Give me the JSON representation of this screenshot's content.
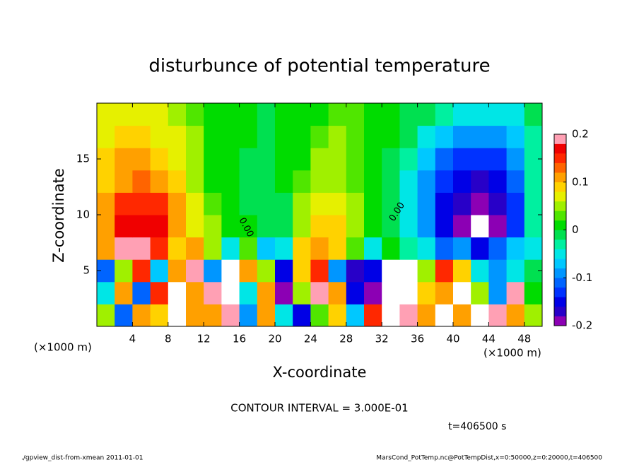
{
  "chart_data": {
    "type": "contour",
    "title": "disturbunce of potential temperature",
    "xlabel": "X-coordinate",
    "ylabel": "Z-coordinate",
    "xunit": "(×1000 m)",
    "yunit": "(×1000 m)",
    "xlim": [
      0,
      50
    ],
    "ylim": [
      0,
      20
    ],
    "xticks": [
      4,
      8,
      12,
      16,
      20,
      24,
      28,
      32,
      36,
      40,
      44,
      48
    ],
    "yticks": [
      5,
      10,
      15
    ],
    "clim": [
      -0.2,
      0.2
    ],
    "cticks": [
      -0.2,
      -0.1,
      0,
      0.1,
      0.2
    ],
    "colors": [
      "#8c00b4",
      "#2800c8",
      "#0000e6",
      "#0032ff",
      "#0064ff",
      "#0096ff",
      "#00c8ff",
      "#00e6e6",
      "#00f0a0",
      "#00e050",
      "#00dc00",
      "#50e600",
      "#a0f000",
      "#e6f000",
      "#ffd200",
      "#ffa000",
      "#ff6400",
      "#ff2800",
      "#f00000",
      "#ffa0b4"
    ],
    "out_color": "#ffffff",
    "x": [
      1,
      3,
      5,
      7,
      9,
      11,
      13,
      15,
      17,
      19,
      21,
      23,
      25,
      27,
      29,
      31,
      33,
      35,
      37,
      39,
      41,
      43,
      45,
      47,
      49
    ],
    "y": [
      1,
      3,
      5,
      7,
      9,
      11,
      13,
      15,
      17,
      19
    ],
    "z": [
      [
        0.05,
        -0.12,
        0.1,
        0.08,
        0.22,
        0.12,
        0.1,
        0.18,
        -0.1,
        0.12,
        -0.05,
        -0.15,
        0.03,
        0.08,
        -0.08,
        0.15,
        0.22,
        0.2,
        0.1,
        0.22,
        0.1,
        0.22,
        0.18,
        0.12,
        0.05
      ],
      [
        -0.05,
        0.1,
        -0.12,
        0.15,
        0.22,
        0.12,
        0.18,
        0.22,
        -0.05,
        0.1,
        -0.2,
        0.05,
        0.18,
        0.12,
        -0.15,
        -0.2,
        0.22,
        0.22,
        0.08,
        0.1,
        0.22,
        0.05,
        -0.1,
        0.2,
        0
      ],
      [
        -0.12,
        0.05,
        0.15,
        -0.08,
        0.12,
        0.2,
        -0.1,
        0.22,
        0.1,
        0.05,
        -0.15,
        0.08,
        0.15,
        -0.1,
        -0.18,
        -0.15,
        0.22,
        0.22,
        0.05,
        0.15,
        0.08,
        -0.05,
        -0.1,
        -0.05,
        -0.02
      ],
      [
        0.12,
        0.18,
        0.2,
        0.15,
        0.08,
        0.1,
        0.05,
        -0.05,
        0.03,
        -0.08,
        -0.05,
        0.09,
        0.1,
        0.08,
        0.03,
        -0.04,
        0.02,
        -0.03,
        -0.05,
        -0.12,
        -0.1,
        -0.15,
        -0.12,
        -0.08,
        -0.04
      ],
      [
        0.11,
        0.16,
        0.17,
        0.16,
        0.12,
        0.07,
        0.04,
        0.02,
        0,
        -0.02,
        -0.01,
        0.05,
        0.08,
        0.08,
        0.05,
        0.02,
        -0.01,
        -0.05,
        -0.1,
        -0.15,
        -0.19,
        -0.22,
        -0.19,
        -0.14,
        -0.03
      ],
      [
        0.1,
        0.14,
        0.15,
        0.14,
        0.1,
        0.06,
        0.03,
        0.01,
        -0.01,
        -0.02,
        -0.01,
        0.04,
        0.06,
        0.06,
        0.04,
        0.01,
        -0.01,
        -0.05,
        -0.1,
        -0.15,
        -0.18,
        -0.2,
        -0.17,
        -0.13,
        -0.03
      ],
      [
        0.09,
        0.12,
        0.13,
        0.12,
        0.09,
        0.05,
        0.02,
        0,
        -0.01,
        -0.01,
        0,
        0.03,
        0.05,
        0.05,
        0.03,
        0.01,
        -0.01,
        -0.04,
        -0.09,
        -0.14,
        -0.16,
        -0.17,
        -0.16,
        -0.12,
        -0.03
      ],
      [
        0.08,
        0.1,
        0.1,
        0.09,
        0.07,
        0.05,
        0.02,
        0.01,
        -0.01,
        -0.01,
        0,
        0.02,
        0.04,
        0.04,
        0.03,
        0.01,
        -0.01,
        -0.03,
        -0.07,
        -0.11,
        -0.13,
        -0.14,
        -0.13,
        -0.1,
        -0.03
      ],
      [
        0.07,
        0.08,
        0.08,
        0.07,
        0.06,
        0.04,
        0.02,
        0.01,
        0,
        -0.01,
        0,
        0.02,
        0.03,
        0.04,
        0.03,
        0.02,
        0,
        -0.02,
        -0.04,
        -0.07,
        -0.09,
        -0.1,
        -0.1,
        -0.08,
        -0.03
      ],
      [
        0.06,
        0.07,
        0.07,
        0.06,
        0.05,
        0.03,
        0.02,
        0.01,
        0,
        -0.01,
        0,
        0.01,
        0.02,
        0.03,
        0.03,
        0.02,
        0,
        -0.01,
        -0.02,
        -0.03,
        -0.04,
        -0.05,
        -0.05,
        -0.04,
        -0.02
      ]
    ],
    "contour_labels": [
      "0.00",
      "0.00"
    ],
    "contour_interval": "CONTOUR INTERVAL = 3.000E-01",
    "time_label": "t=406500 s",
    "footer_left": "./gpview_dist-from-xmean  2011-01-01",
    "footer_right": "MarsCond_PotTemp.nc@PotTempDist,x=0:50000,z=0:20000,t=406500"
  }
}
